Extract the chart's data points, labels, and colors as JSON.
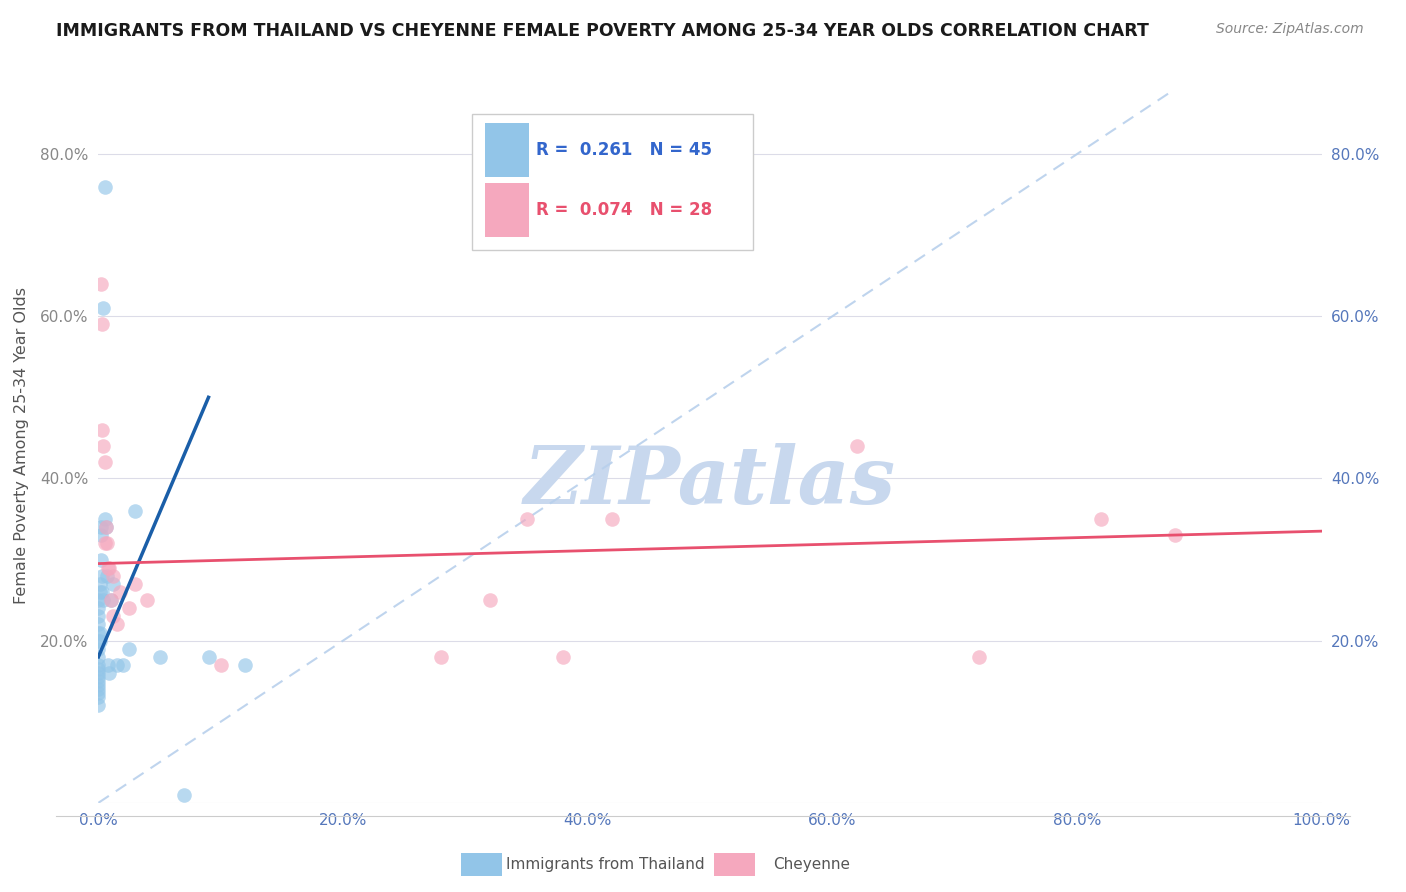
{
  "title": "IMMIGRANTS FROM THAILAND VS CHEYENNE FEMALE POVERTY AMONG 25-34 YEAR OLDS CORRELATION CHART",
  "source": "Source: ZipAtlas.com",
  "ylabel": "Female Poverty Among 25-34 Year Olds",
  "xlim": [
    0,
    1.0
  ],
  "ylim": [
    0,
    0.88
  ],
  "xticks": [
    0.0,
    0.2,
    0.4,
    0.6,
    0.8,
    1.0
  ],
  "yticks": [
    0.0,
    0.2,
    0.4,
    0.6,
    0.8
  ],
  "xticklabels": [
    "0.0%",
    "20.0%",
    "40.0%",
    "60.0%",
    "80.0%",
    "100.0%"
  ],
  "yticklabels": [
    "",
    "20.0%",
    "40.0%",
    "60.0%",
    "80.0%"
  ],
  "right_yticklabels": [
    "",
    "20.0%",
    "40.0%",
    "60.0%",
    "80.0%"
  ],
  "right_yticks": [
    0.0,
    0.2,
    0.4,
    0.6,
    0.8
  ],
  "legend_label1": "Immigrants from Thailand",
  "legend_label2": "Cheyenne",
  "legend_r1": "R =  0.261",
  "legend_n1": "N = 45",
  "legend_r2": "R =  0.074",
  "legend_n2": "N = 28",
  "color_blue": "#92C5E8",
  "color_pink": "#F5A8BE",
  "color_blue_line": "#1A5EA8",
  "color_pink_line": "#E8506E",
  "color_diag_line": "#B8D0EC",
  "watermark": "ZIPatlas",
  "watermark_color": "#C8D8EE",
  "background": "#FFFFFF",
  "grid_color": "#DCDCE8",
  "blue_scatter_x": [
    0.005,
    0.004,
    0.0,
    0.0,
    0.0,
    0.0,
    0.0,
    0.0,
    0.0,
    0.0,
    0.0,
    0.0,
    0.0,
    0.0,
    0.0,
    0.0,
    0.0,
    0.0,
    0.0,
    0.0,
    0.001,
    0.001,
    0.001,
    0.001,
    0.002,
    0.002,
    0.002,
    0.003,
    0.003,
    0.004,
    0.005,
    0.006,
    0.007,
    0.008,
    0.009,
    0.01,
    0.012,
    0.015,
    0.02,
    0.025,
    0.03,
    0.05,
    0.07,
    0.09,
    0.12
  ],
  "blue_scatter_y": [
    0.76,
    0.61,
    0.25,
    0.24,
    0.23,
    0.22,
    0.21,
    0.2,
    0.19,
    0.18,
    0.17,
    0.165,
    0.16,
    0.155,
    0.15,
    0.145,
    0.14,
    0.135,
    0.13,
    0.12,
    0.27,
    0.26,
    0.21,
    0.2,
    0.34,
    0.33,
    0.3,
    0.28,
    0.26,
    0.25,
    0.35,
    0.34,
    0.28,
    0.17,
    0.16,
    0.25,
    0.27,
    0.17,
    0.17,
    0.19,
    0.36,
    0.18,
    0.01,
    0.18,
    0.17
  ],
  "pink_scatter_x": [
    0.002,
    0.003,
    0.004,
    0.005,
    0.006,
    0.007,
    0.009,
    0.01,
    0.012,
    0.015,
    0.025,
    0.04,
    0.32,
    0.35,
    0.38,
    0.42,
    0.62,
    0.72,
    0.82,
    0.88,
    0.003,
    0.005,
    0.008,
    0.012,
    0.018,
    0.03,
    0.1,
    0.28
  ],
  "pink_scatter_y": [
    0.64,
    0.59,
    0.44,
    0.42,
    0.34,
    0.32,
    0.29,
    0.25,
    0.23,
    0.22,
    0.24,
    0.25,
    0.25,
    0.35,
    0.18,
    0.35,
    0.44,
    0.18,
    0.35,
    0.33,
    0.46,
    0.32,
    0.29,
    0.28,
    0.26,
    0.27,
    0.17,
    0.18
  ],
  "blue_line_x0": 0.0,
  "blue_line_x1": 0.09,
  "blue_line_y0": 0.18,
  "blue_line_y1": 0.5,
  "pink_line_x0": 0.0,
  "pink_line_x1": 1.0,
  "pink_line_y0": 0.295,
  "pink_line_y1": 0.335
}
